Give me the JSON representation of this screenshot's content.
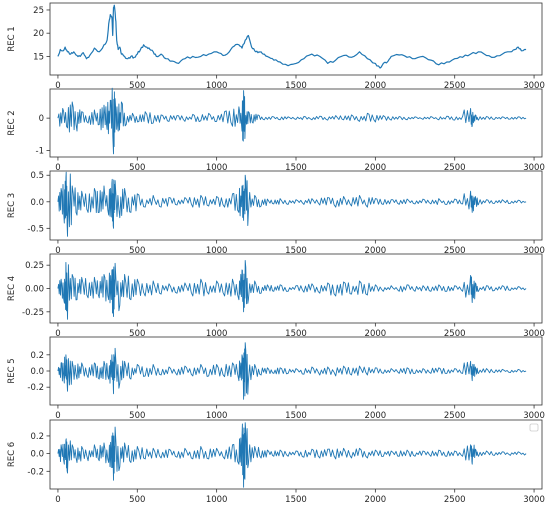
{
  "chart_data": [
    {
      "type": "line",
      "ylabel": "REC 1",
      "xlim": [
        -50,
        3050
      ],
      "ylim": [
        11,
        26.5
      ],
      "xticks": [
        0,
        500,
        1000,
        1500,
        2000,
        2500,
        3000
      ],
      "yticks": [
        15,
        20,
        25
      ],
      "ytick_labels": [
        "15",
        "20",
        "25"
      ],
      "line_color": "#1f77b4",
      "x": [
        0,
        15,
        30,
        45,
        60,
        80,
        100,
        120,
        140,
        160,
        180,
        200,
        230,
        260,
        290,
        310,
        320,
        330,
        340,
        345,
        350,
        355,
        360,
        365,
        370,
        380,
        390,
        400,
        420,
        440,
        460,
        480,
        500,
        520,
        540,
        560,
        580,
        600,
        620,
        650,
        680,
        720,
        760,
        800,
        850,
        900,
        950,
        1000,
        1040,
        1080,
        1110,
        1140,
        1160,
        1180,
        1200,
        1220,
        1240,
        1260,
        1280,
        1300,
        1330,
        1360,
        1400,
        1450,
        1500,
        1550,
        1600,
        1650,
        1700,
        1750,
        1800,
        1850,
        1900,
        1950,
        2000,
        2030,
        2050,
        2080,
        2100,
        2150,
        2200,
        2250,
        2300,
        2350,
        2400,
        2450,
        2500,
        2550,
        2600,
        2650,
        2700,
        2750,
        2800,
        2850,
        2880,
        2900,
        2920,
        2950
      ],
      "y": [
        15,
        16.5,
        16.2,
        17,
        16,
        15.5,
        16,
        15.2,
        15,
        15.8,
        14.5,
        15.2,
        16.8,
        16,
        17.5,
        18.5,
        22,
        24,
        23.5,
        19.5,
        25.5,
        26,
        24.5,
        22.5,
        18.5,
        16.5,
        17,
        15.5,
        15,
        14.5,
        15,
        14.8,
        15.5,
        16.5,
        17.5,
        17,
        16.5,
        16,
        15,
        15.5,
        14.5,
        14,
        13.5,
        14.5,
        15,
        15,
        15.5,
        16,
        15.2,
        16,
        17.2,
        17.5,
        16.8,
        18.5,
        19.5,
        17,
        16.2,
        15.8,
        16,
        15.5,
        14.8,
        14.2,
        13.8,
        13,
        13.5,
        14.5,
        15.5,
        15,
        13.5,
        14.2,
        15.2,
        14.8,
        16,
        14.5,
        13.5,
        12.5,
        13.5,
        14,
        15,
        15.3,
        14.8,
        14.5,
        15,
        14.2,
        13.2,
        13.8,
        14.5,
        14.8,
        15.5,
        16,
        15.2,
        14.8,
        15.5,
        16,
        16.5,
        17,
        16.2,
        16.5
      ]
    },
    {
      "type": "line",
      "ylabel": "REC 2",
      "xlim": [
        -50,
        3050
      ],
      "ylim": [
        -1.2,
        0.9
      ],
      "xticks": [
        0,
        500,
        1000,
        1500,
        2000,
        2500,
        3000
      ],
      "yticks": [
        -1,
        0
      ],
      "ytick_labels": [
        "-1",
        "0"
      ],
      "line_color": "#1f77b4",
      "x": [
        0,
        30,
        60,
        90,
        120,
        150,
        190,
        230,
        260,
        290,
        310,
        330,
        350,
        360,
        380,
        400,
        430,
        470,
        510,
        550,
        600,
        650,
        700,
        750,
        800,
        850,
        900,
        950,
        1000,
        1050,
        1100,
        1140,
        1160,
        1170,
        1180,
        1200,
        1230,
        1260,
        1300,
        1350,
        1400,
        1450,
        1500,
        1550,
        1600,
        1650,
        1700,
        1750,
        1800,
        1850,
        1900,
        1950,
        2000,
        2050,
        2100,
        2150,
        2200,
        2250,
        2300,
        2350,
        2400,
        2450,
        2500,
        2550,
        2600,
        2610,
        2630,
        2650,
        2700,
        2750,
        2800,
        2850,
        2900,
        2950
      ],
      "y": [
        0,
        0.3,
        -0.3,
        0.5,
        -0.4,
        0.2,
        -0.15,
        0.25,
        -0.2,
        0.4,
        -0.35,
        0.55,
        -1.1,
        0.6,
        -0.4,
        0.5,
        -0.2,
        0.15,
        -0.1,
        0.2,
        -0.15,
        0.1,
        -0.1,
        0.08,
        -0.1,
        0.12,
        -0.08,
        0.15,
        -0.1,
        0.2,
        -0.25,
        0.35,
        -0.4,
        0.85,
        -0.3,
        0.2,
        -0.15,
        0.1,
        -0.05,
        0.05,
        -0.05,
        0.04,
        -0.04,
        0.05,
        -0.05,
        0.06,
        -0.06,
        0.08,
        -0.05,
        0.1,
        -0.1,
        0.15,
        -0.12,
        0.08,
        -0.06,
        0.05,
        -0.05,
        0.04,
        -0.04,
        0.05,
        -0.05,
        0.06,
        -0.06,
        0.05,
        0.3,
        -0.25,
        0.1,
        -0.06,
        0.05,
        -0.04,
        0.04,
        -0.03,
        0.04,
        0
      ]
    },
    {
      "type": "line",
      "ylabel": "REC 3",
      "xlim": [
        -50,
        3050
      ],
      "ylim": [
        -0.72,
        0.58
      ],
      "xticks": [
        0,
        500,
        1000,
        1500,
        2000,
        2500,
        3000
      ],
      "yticks": [
        -0.5,
        0,
        0.5
      ],
      "ytick_labels": [
        "-0.5",
        "0.0",
        "0.5"
      ],
      "line_color": "#1f77b4",
      "x": [
        0,
        20,
        40,
        50,
        60,
        90,
        120,
        150,
        190,
        230,
        260,
        290,
        320,
        340,
        350,
        360,
        390,
        420,
        460,
        500,
        550,
        600,
        650,
        700,
        750,
        800,
        850,
        900,
        950,
        1000,
        1050,
        1100,
        1140,
        1160,
        1170,
        1180,
        1200,
        1240,
        1280,
        1320,
        1360,
        1400,
        1450,
        1500,
        1550,
        1600,
        1650,
        1700,
        1750,
        1800,
        1850,
        1900,
        1950,
        2000,
        2050,
        2100,
        2150,
        2200,
        2250,
        2300,
        2350,
        2400,
        2450,
        2500,
        2550,
        2600,
        2610,
        2630,
        2650,
        2700,
        2750,
        2800,
        2850,
        2900,
        2950
      ],
      "y": [
        0,
        0.25,
        -0.4,
        0.45,
        -0.65,
        0.3,
        -0.25,
        0.2,
        -0.2,
        0.25,
        -0.2,
        0.3,
        -0.25,
        0.35,
        -0.5,
        0.4,
        -0.3,
        0.25,
        -0.2,
        0.15,
        -0.1,
        0.12,
        -0.1,
        0.08,
        -0.06,
        0.08,
        -0.1,
        0.12,
        -0.08,
        0.1,
        -0.1,
        0.15,
        -0.2,
        0.3,
        -0.35,
        0.5,
        -0.2,
        0.12,
        -0.08,
        0.05,
        -0.04,
        0.06,
        -0.05,
        0.04,
        -0.05,
        0.06,
        -0.06,
        0.08,
        -0.1,
        0.1,
        -0.08,
        0.12,
        -0.1,
        0.06,
        -0.05,
        0.04,
        -0.05,
        0.05,
        -0.04,
        0.05,
        -0.04,
        0.06,
        -0.05,
        0.05,
        -0.04,
        0.2,
        -0.2,
        0.1,
        -0.05,
        0.04,
        -0.03,
        0.04,
        -0.03,
        0.03,
        0
      ]
    },
    {
      "type": "line",
      "ylabel": "REC 4",
      "xlim": [
        -50,
        3050
      ],
      "ylim": [
        -0.37,
        0.37
      ],
      "xticks": [
        0,
        500,
        1000,
        1500,
        2000,
        2500,
        3000
      ],
      "yticks": [
        -0.25,
        0,
        0.25
      ],
      "ytick_labels": [
        "-0.25",
        "0.00",
        "0.25"
      ],
      "line_color": "#1f77b4",
      "x": [
        0,
        20,
        40,
        50,
        60,
        90,
        120,
        150,
        190,
        230,
        260,
        290,
        320,
        340,
        350,
        360,
        390,
        420,
        460,
        500,
        550,
        600,
        650,
        700,
        750,
        800,
        850,
        900,
        950,
        1000,
        1050,
        1100,
        1140,
        1160,
        1170,
        1180,
        1200,
        1240,
        1280,
        1320,
        1360,
        1400,
        1450,
        1500,
        1550,
        1600,
        1650,
        1700,
        1750,
        1800,
        1850,
        1900,
        1950,
        2000,
        2050,
        2100,
        2150,
        2200,
        2250,
        2300,
        2350,
        2400,
        2450,
        2500,
        2550,
        2600,
        2610,
        2630,
        2650,
        2700,
        2750,
        2800,
        2850,
        2900,
        2950
      ],
      "y": [
        0,
        0.1,
        -0.15,
        0.28,
        -0.33,
        0.15,
        -0.12,
        0.12,
        -0.1,
        0.12,
        -0.1,
        0.15,
        -0.12,
        0.2,
        -0.3,
        0.27,
        -0.18,
        0.15,
        -0.12,
        0.1,
        -0.08,
        0.08,
        -0.06,
        0.05,
        -0.05,
        0.06,
        -0.08,
        0.1,
        -0.06,
        0.08,
        -0.08,
        0.1,
        -0.12,
        0.2,
        -0.25,
        0.3,
        -0.12,
        0.08,
        -0.05,
        0.04,
        -0.03,
        0.04,
        -0.03,
        0.03,
        -0.04,
        0.05,
        -0.05,
        0.06,
        -0.08,
        0.07,
        -0.06,
        0.08,
        -0.07,
        0.04,
        -0.03,
        0.03,
        -0.03,
        0.04,
        -0.03,
        0.03,
        -0.03,
        0.04,
        -0.03,
        0.03,
        -0.03,
        0.14,
        -0.15,
        0.06,
        -0.03,
        0.03,
        -0.02,
        0.03,
        -0.02,
        0.02,
        0
      ]
    },
    {
      "type": "line",
      "ylabel": "REC 5",
      "xlim": [
        -50,
        3050
      ],
      "ylim": [
        -0.42,
        0.42
      ],
      "xticks": [
        0,
        500,
        1000,
        1500,
        2000,
        2500,
        3000
      ],
      "yticks": [
        -0.2,
        0,
        0.2
      ],
      "ytick_labels": [
        "-0.2",
        "0.0",
        "0.2"
      ],
      "line_color": "#1f77b4",
      "x": [
        0,
        20,
        40,
        50,
        60,
        90,
        120,
        150,
        190,
        230,
        260,
        290,
        320,
        340,
        350,
        360,
        390,
        420,
        460,
        500,
        550,
        600,
        650,
        700,
        750,
        800,
        850,
        900,
        950,
        1000,
        1050,
        1100,
        1140,
        1160,
        1170,
        1180,
        1200,
        1240,
        1280,
        1320,
        1360,
        1400,
        1450,
        1500,
        1550,
        1600,
        1650,
        1700,
        1750,
        1800,
        1850,
        1900,
        1950,
        2000,
        2050,
        2100,
        2150,
        2200,
        2250,
        2300,
        2350,
        2400,
        2450,
        2500,
        2550,
        2600,
        2610,
        2630,
        2650,
        2700,
        2750,
        2800,
        2850,
        2900,
        2950
      ],
      "y": [
        0,
        0.1,
        -0.15,
        0.2,
        -0.25,
        0.12,
        -0.1,
        0.1,
        -0.08,
        0.1,
        -0.1,
        0.12,
        -0.1,
        0.2,
        -0.28,
        0.28,
        -0.15,
        0.12,
        -0.1,
        0.08,
        -0.06,
        0.08,
        -0.05,
        0.05,
        -0.05,
        0.06,
        -0.06,
        0.08,
        -0.06,
        0.08,
        -0.07,
        0.1,
        -0.12,
        0.2,
        -0.35,
        0.35,
        -0.12,
        0.08,
        -0.05,
        0.04,
        -0.03,
        0.04,
        -0.03,
        0.03,
        -0.04,
        0.05,
        -0.05,
        0.05,
        -0.06,
        0.06,
        -0.05,
        0.06,
        -0.05,
        0.04,
        -0.03,
        0.03,
        -0.03,
        0.04,
        -0.03,
        0.03,
        -0.03,
        0.04,
        -0.03,
        0.03,
        -0.03,
        0.12,
        -0.12,
        0.05,
        -0.03,
        0.03,
        -0.02,
        0.02,
        -0.02,
        0.02,
        0
      ]
    },
    {
      "type": "line",
      "ylabel": "REC 6",
      "xlim": [
        -50,
        3050
      ],
      "ylim": [
        -0.4,
        0.38
      ],
      "xticks": [
        0,
        500,
        1000,
        1500,
        2000,
        2500,
        3000
      ],
      "yticks": [
        -0.2,
        0,
        0.2
      ],
      "ytick_labels": [
        "-0.2",
        "0.0",
        "0.2"
      ],
      "line_color": "#1f77b4",
      "x": [
        0,
        20,
        40,
        50,
        60,
        90,
        120,
        150,
        190,
        230,
        260,
        290,
        320,
        340,
        350,
        360,
        390,
        420,
        460,
        500,
        550,
        600,
        650,
        700,
        750,
        800,
        850,
        900,
        950,
        1000,
        1050,
        1100,
        1140,
        1160,
        1170,
        1180,
        1200,
        1240,
        1280,
        1320,
        1360,
        1400,
        1450,
        1500,
        1550,
        1600,
        1650,
        1700,
        1750,
        1800,
        1850,
        1900,
        1950,
        2000,
        2050,
        2100,
        2150,
        2200,
        2250,
        2300,
        2350,
        2400,
        2450,
        2500,
        2550,
        2600,
        2610,
        2630,
        2650,
        2700,
        2750,
        2800,
        2850,
        2900,
        2950
      ],
      "y": [
        0,
        0.1,
        -0.12,
        0.15,
        -0.22,
        0.1,
        -0.1,
        0.08,
        -0.08,
        0.1,
        -0.08,
        0.12,
        -0.1,
        0.2,
        -0.3,
        0.3,
        -0.15,
        0.12,
        -0.1,
        0.08,
        -0.06,
        0.06,
        -0.05,
        0.05,
        -0.04,
        0.06,
        -0.06,
        0.08,
        -0.06,
        0.06,
        -0.06,
        0.1,
        -0.12,
        0.2,
        -0.38,
        0.35,
        -0.12,
        0.08,
        -0.05,
        0.04,
        -0.03,
        0.04,
        -0.03,
        0.03,
        -0.04,
        0.05,
        -0.05,
        0.05,
        -0.06,
        0.06,
        -0.05,
        0.06,
        -0.05,
        0.04,
        -0.03,
        0.03,
        -0.03,
        0.04,
        -0.03,
        0.03,
        -0.03,
        0.04,
        -0.03,
        0.03,
        -0.03,
        0.1,
        -0.12,
        0.05,
        -0.03,
        0.03,
        -0.02,
        0.02,
        -0.02,
        0.02,
        0
      ],
      "legend": {
        "placement": "top-right",
        "entries": []
      }
    }
  ]
}
